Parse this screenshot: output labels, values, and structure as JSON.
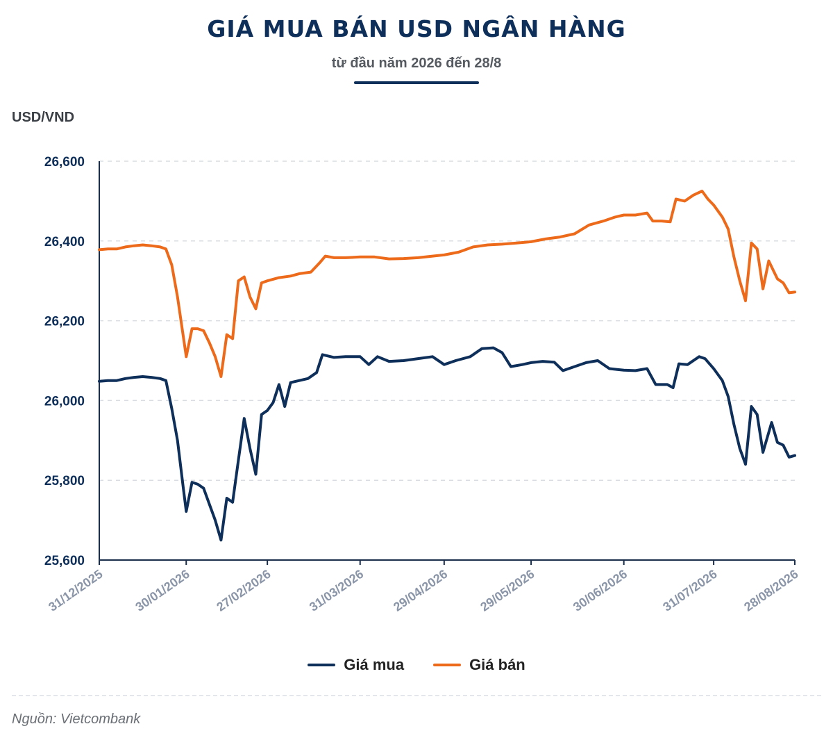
{
  "header": {
    "title": "GIÁ MUA BÁN USD NGÂN HÀNG",
    "subtitle": "từ đầu năm 2026 đến 28/8"
  },
  "unit_label": "USD/VND",
  "source": "Nguồn: Vietcombank",
  "colors": {
    "buy": "#0e2f5a",
    "sell": "#ec6a1a",
    "axis": "#1a2d4a",
    "grid": "#d9dde2",
    "tick_text": "#0e2f5a",
    "date_text": "#8a95a8"
  },
  "chart_data": {
    "type": "line",
    "title": "GIÁ MUA BÁN USD NGÂN HÀNG",
    "subtitle": "từ đầu năm 2026 đến 28/8",
    "xlabel": "",
    "ylabel": "USD/VND",
    "ylim": [
      25600,
      26600
    ],
    "yticks": [
      25600,
      25800,
      26000,
      26200,
      26400,
      26600
    ],
    "ytick_labels": [
      "25,600",
      "25,800",
      "26,000",
      "26,200",
      "26,400",
      "26,600"
    ],
    "xlim": [
      "2025-12-31",
      "2026-08-28"
    ],
    "xticks": [
      "2025-12-31",
      "2026-01-30",
      "2026-02-27",
      "2026-03-31",
      "2026-04-29",
      "2026-05-29",
      "2026-06-30",
      "2026-07-31",
      "2026-08-28"
    ],
    "xtick_labels": [
      "31/12/2025",
      "30/01/2026",
      "27/02/2026",
      "31/03/2026",
      "29/04/2026",
      "29/05/2026",
      "30/06/2026",
      "31/07/2026",
      "28/08/2026"
    ],
    "grid": true,
    "legend_position": "bottom",
    "series": [
      {
        "name": "Giá mua",
        "color": "#0e2f5a",
        "points": [
          [
            "2025-12-31",
            26048
          ],
          [
            "2026-01-03",
            26050
          ],
          [
            "2026-01-06",
            26050
          ],
          [
            "2026-01-09",
            26055
          ],
          [
            "2026-01-12",
            26058
          ],
          [
            "2026-01-15",
            26060
          ],
          [
            "2026-01-18",
            26058
          ],
          [
            "2026-01-21",
            26055
          ],
          [
            "2026-01-23",
            26050
          ],
          [
            "2026-01-25",
            25980
          ],
          [
            "2026-01-27",
            25900
          ],
          [
            "2026-01-29",
            25780
          ],
          [
            "2026-01-30",
            25722
          ],
          [
            "2026-02-01",
            25795
          ],
          [
            "2026-02-03",
            25790
          ],
          [
            "2026-02-05",
            25780
          ],
          [
            "2026-02-07",
            25740
          ],
          [
            "2026-02-09",
            25700
          ],
          [
            "2026-02-11",
            25650
          ],
          [
            "2026-02-13",
            25755
          ],
          [
            "2026-02-15",
            25745
          ],
          [
            "2026-02-17",
            25850
          ],
          [
            "2026-02-19",
            25955
          ],
          [
            "2026-02-21",
            25880
          ],
          [
            "2026-02-23",
            25815
          ],
          [
            "2026-02-25",
            25965
          ],
          [
            "2026-02-27",
            25975
          ],
          [
            "2026-03-01",
            25995
          ],
          [
            "2026-03-03",
            26040
          ],
          [
            "2026-03-05",
            25985
          ],
          [
            "2026-03-07",
            26045
          ],
          [
            "2026-03-10",
            26050
          ],
          [
            "2026-03-13",
            26055
          ],
          [
            "2026-03-16",
            26070
          ],
          [
            "2026-03-18",
            26115
          ],
          [
            "2026-03-22",
            26108
          ],
          [
            "2026-03-26",
            26110
          ],
          [
            "2026-03-31",
            26110
          ],
          [
            "2026-04-03",
            26090
          ],
          [
            "2026-04-06",
            26110
          ],
          [
            "2026-04-10",
            26098
          ],
          [
            "2026-04-15",
            26100
          ],
          [
            "2026-04-20",
            26105
          ],
          [
            "2026-04-25",
            26110
          ],
          [
            "2026-04-29",
            26090
          ],
          [
            "2026-05-03",
            26100
          ],
          [
            "2026-05-08",
            26110
          ],
          [
            "2026-05-12",
            26130
          ],
          [
            "2026-05-16",
            26132
          ],
          [
            "2026-05-19",
            26120
          ],
          [
            "2026-05-22",
            26085
          ],
          [
            "2026-05-26",
            26090
          ],
          [
            "2026-05-29",
            26095
          ],
          [
            "2026-06-02",
            26098
          ],
          [
            "2026-06-06",
            26096
          ],
          [
            "2026-06-09",
            26075
          ],
          [
            "2026-06-13",
            26085
          ],
          [
            "2026-06-17",
            26095
          ],
          [
            "2026-06-21",
            26100
          ],
          [
            "2026-06-25",
            26080
          ],
          [
            "2026-06-30",
            26076
          ],
          [
            "2026-07-04",
            26075
          ],
          [
            "2026-07-08",
            26080
          ],
          [
            "2026-07-11",
            26040
          ],
          [
            "2026-07-15",
            26040
          ],
          [
            "2026-07-17",
            26032
          ],
          [
            "2026-07-19",
            26092
          ],
          [
            "2026-07-22",
            26090
          ],
          [
            "2026-07-26",
            26110
          ],
          [
            "2026-07-28",
            26105
          ],
          [
            "2026-07-31",
            26080
          ],
          [
            "2026-08-03",
            26050
          ],
          [
            "2026-08-05",
            26010
          ],
          [
            "2026-08-07",
            25940
          ],
          [
            "2026-08-09",
            25880
          ],
          [
            "2026-08-11",
            25840
          ],
          [
            "2026-08-13",
            25985
          ],
          [
            "2026-08-15",
            25965
          ],
          [
            "2026-08-17",
            25870
          ],
          [
            "2026-08-20",
            25945
          ],
          [
            "2026-08-22",
            25895
          ],
          [
            "2026-08-24",
            25888
          ],
          [
            "2026-08-26",
            25858
          ],
          [
            "2026-08-28",
            25862
          ]
        ]
      },
      {
        "name": "Giá bán",
        "color": "#ec6a1a",
        "points": [
          [
            "2025-12-31",
            26378
          ],
          [
            "2026-01-03",
            26380
          ],
          [
            "2026-01-06",
            26380
          ],
          [
            "2026-01-09",
            26385
          ],
          [
            "2026-01-12",
            26388
          ],
          [
            "2026-01-15",
            26390
          ],
          [
            "2026-01-18",
            26388
          ],
          [
            "2026-01-21",
            26385
          ],
          [
            "2026-01-23",
            26380
          ],
          [
            "2026-01-25",
            26340
          ],
          [
            "2026-01-27",
            26260
          ],
          [
            "2026-01-29",
            26160
          ],
          [
            "2026-01-30",
            26110
          ],
          [
            "2026-02-01",
            26180
          ],
          [
            "2026-02-03",
            26180
          ],
          [
            "2026-02-05",
            26175
          ],
          [
            "2026-02-07",
            26145
          ],
          [
            "2026-02-09",
            26110
          ],
          [
            "2026-02-11",
            26060
          ],
          [
            "2026-02-13",
            26165
          ],
          [
            "2026-02-15",
            26155
          ],
          [
            "2026-02-17",
            26300
          ],
          [
            "2026-02-19",
            26310
          ],
          [
            "2026-02-21",
            26260
          ],
          [
            "2026-02-23",
            26230
          ],
          [
            "2026-02-25",
            26295
          ],
          [
            "2026-02-27",
            26300
          ],
          [
            "2026-03-03",
            26308
          ],
          [
            "2026-03-07",
            26312
          ],
          [
            "2026-03-10",
            26318
          ],
          [
            "2026-03-14",
            26322
          ],
          [
            "2026-03-17",
            26345
          ],
          [
            "2026-03-19",
            26362
          ],
          [
            "2026-03-22",
            26358
          ],
          [
            "2026-03-26",
            26358
          ],
          [
            "2026-03-31",
            26360
          ],
          [
            "2026-04-05",
            26360
          ],
          [
            "2026-04-10",
            26355
          ],
          [
            "2026-04-15",
            26356
          ],
          [
            "2026-04-20",
            26358
          ],
          [
            "2026-04-25",
            26362
          ],
          [
            "2026-04-29",
            26365
          ],
          [
            "2026-05-04",
            26372
          ],
          [
            "2026-05-09",
            26385
          ],
          [
            "2026-05-14",
            26390
          ],
          [
            "2026-05-19",
            26392
          ],
          [
            "2026-05-24",
            26395
          ],
          [
            "2026-05-29",
            26398
          ],
          [
            "2026-06-03",
            26405
          ],
          [
            "2026-06-08",
            26410
          ],
          [
            "2026-06-13",
            26418
          ],
          [
            "2026-06-18",
            26440
          ],
          [
            "2026-06-23",
            26450
          ],
          [
            "2026-06-27",
            26460
          ],
          [
            "2026-06-30",
            26465
          ],
          [
            "2026-07-04",
            26465
          ],
          [
            "2026-07-08",
            26470
          ],
          [
            "2026-07-10",
            26450
          ],
          [
            "2026-07-13",
            26450
          ],
          [
            "2026-07-16",
            26448
          ],
          [
            "2026-07-18",
            26505
          ],
          [
            "2026-07-21",
            26500
          ],
          [
            "2026-07-24",
            26515
          ],
          [
            "2026-07-27",
            26525
          ],
          [
            "2026-07-29",
            26505
          ],
          [
            "2026-07-31",
            26490
          ],
          [
            "2026-08-03",
            26460
          ],
          [
            "2026-08-05",
            26430
          ],
          [
            "2026-08-07",
            26360
          ],
          [
            "2026-08-09",
            26300
          ],
          [
            "2026-08-11",
            26250
          ],
          [
            "2026-08-13",
            26395
          ],
          [
            "2026-08-15",
            26380
          ],
          [
            "2026-08-17",
            26280
          ],
          [
            "2026-08-19",
            26350
          ],
          [
            "2026-08-22",
            26305
          ],
          [
            "2026-08-24",
            26295
          ],
          [
            "2026-08-26",
            26270
          ],
          [
            "2026-08-28",
            26272
          ]
        ]
      }
    ]
  }
}
